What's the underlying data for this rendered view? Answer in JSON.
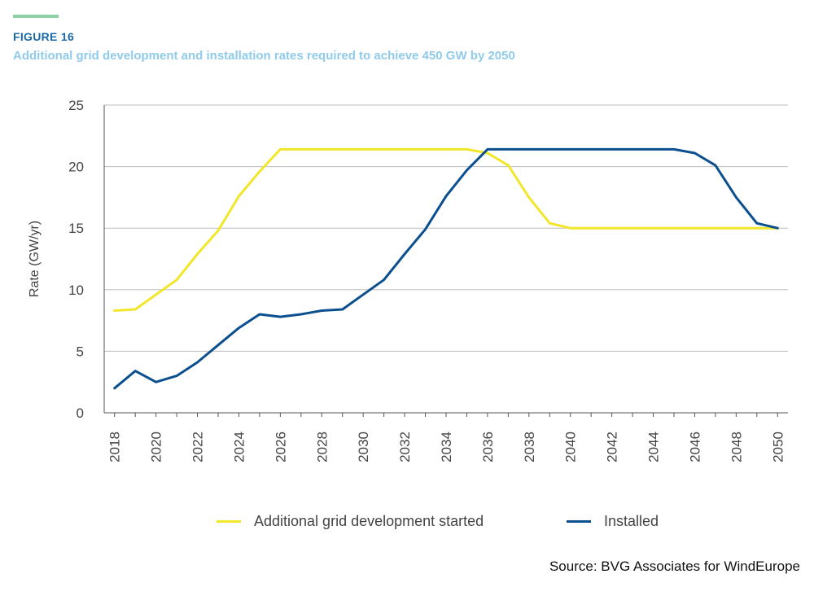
{
  "header": {
    "figure_label": "FIGURE 16",
    "title": "Additional grid development and installation rates required to achieve 450 GW by 2050"
  },
  "colors": {
    "accent_bar": "#8fd1a6",
    "figure_label": "#1b6aa5",
    "title": "#8fcbeb",
    "grid": "#bdbdbd",
    "series_grid": "#f2e62a",
    "series_installed": "#0b4f8f"
  },
  "chart_data": {
    "type": "line",
    "title": "Additional grid development and installation rates required to achieve 450 GW by 2050",
    "xlabel": "",
    "ylabel": "Rate (GW/yr)",
    "ylim": [
      0,
      25
    ],
    "yticks": [
      0,
      5,
      10,
      15,
      20,
      25
    ],
    "xticks": [
      "2018",
      "2020",
      "2022",
      "2024",
      "2026",
      "2028",
      "2030",
      "2032",
      "2034",
      "2036",
      "2038",
      "2040",
      "2042",
      "2044",
      "2046",
      "2048",
      "2050"
    ],
    "grid": "horizontal",
    "legend_position": "bottom",
    "x": [
      2018,
      2019,
      2020,
      2021,
      2022,
      2023,
      2024,
      2025,
      2026,
      2027,
      2028,
      2029,
      2030,
      2031,
      2032,
      2033,
      2034,
      2035,
      2036,
      2037,
      2038,
      2039,
      2040,
      2041,
      2042,
      2043,
      2044,
      2045,
      2046,
      2047,
      2048,
      2049,
      2050
    ],
    "series": [
      {
        "name": "Additional grid development started",
        "values": [
          8.3,
          8.4,
          9.6,
          10.8,
          12.9,
          14.8,
          17.6,
          19.6,
          21.4,
          21.4,
          21.4,
          21.4,
          21.4,
          21.4,
          21.4,
          21.4,
          21.4,
          21.4,
          21.1,
          20.1,
          17.5,
          15.4,
          15.0,
          15.0,
          15.0,
          15.0,
          15.0,
          15.0,
          15.0,
          15.0,
          15.0,
          15.0,
          15.0
        ]
      },
      {
        "name": "Installed",
        "values": [
          2.0,
          3.4,
          2.5,
          3.0,
          4.1,
          5.5,
          6.9,
          8.0,
          7.8,
          8.0,
          8.3,
          8.4,
          9.6,
          10.8,
          12.9,
          14.9,
          17.6,
          19.7,
          21.4,
          21.4,
          21.4,
          21.4,
          21.4,
          21.4,
          21.4,
          21.4,
          21.4,
          21.4,
          21.1,
          20.1,
          17.5,
          15.4,
          15.0
        ]
      }
    ]
  },
  "source": "Source: BVG Associates for WindEurope"
}
